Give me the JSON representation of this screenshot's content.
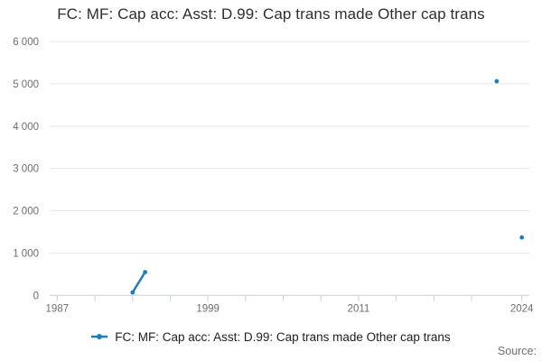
{
  "page": {
    "title": "FC: MF: Cap acc: Asst: D.99: Cap trans made Other cap trans"
  },
  "legend": {
    "label": "FC: MF: Cap acc: Asst: D.99: Cap trans made Other cap trans"
  },
  "source": {
    "label": "Source:"
  },
  "colors": {
    "series": "#1e7cc0",
    "grid": "#e6e6e6",
    "axis_line": "#c6d2e4",
    "tick_label": "#6e6e6e"
  },
  "chart_data": {
    "type": "line",
    "title": "FC: MF: Cap acc: Asst: D.99: Cap trans made Other cap trans",
    "xlabel": "",
    "ylabel": "",
    "grid": true,
    "legend_position": "bottom",
    "xlim": [
      1986.4,
      2024.6
    ],
    "ylim": [
      0,
      6000
    ],
    "series": [
      {
        "name": "FC: MF: Cap acc: Asst: D.99: Cap trans made Other cap trans",
        "points": [
          [
            1993,
            70
          ],
          [
            1994,
            550
          ],
          [
            2022,
            5060
          ],
          [
            2024,
            1370
          ]
        ]
      }
    ],
    "y_ticks": [
      {
        "value": 0,
        "label": "0"
      },
      {
        "value": 1000,
        "label": "1 000"
      },
      {
        "value": 2000,
        "label": "2 000"
      },
      {
        "value": 3000,
        "label": "3 000"
      },
      {
        "value": 4000,
        "label": "4 000"
      },
      {
        "value": 5000,
        "label": "5 000"
      },
      {
        "value": 6000,
        "label": "6 000"
      }
    ],
    "x_minor_tick_years": [
      1987,
      1990,
      1993,
      1996,
      1999,
      2002,
      2005,
      2008,
      2011,
      2014,
      2017,
      2020,
      2024
    ],
    "x_tick_labels": [
      {
        "year": 1987,
        "label": "1987"
      },
      {
        "year": 1999,
        "label": "1999"
      },
      {
        "year": 2011,
        "label": "2011"
      },
      {
        "year": 2024,
        "label": "2024"
      }
    ]
  }
}
